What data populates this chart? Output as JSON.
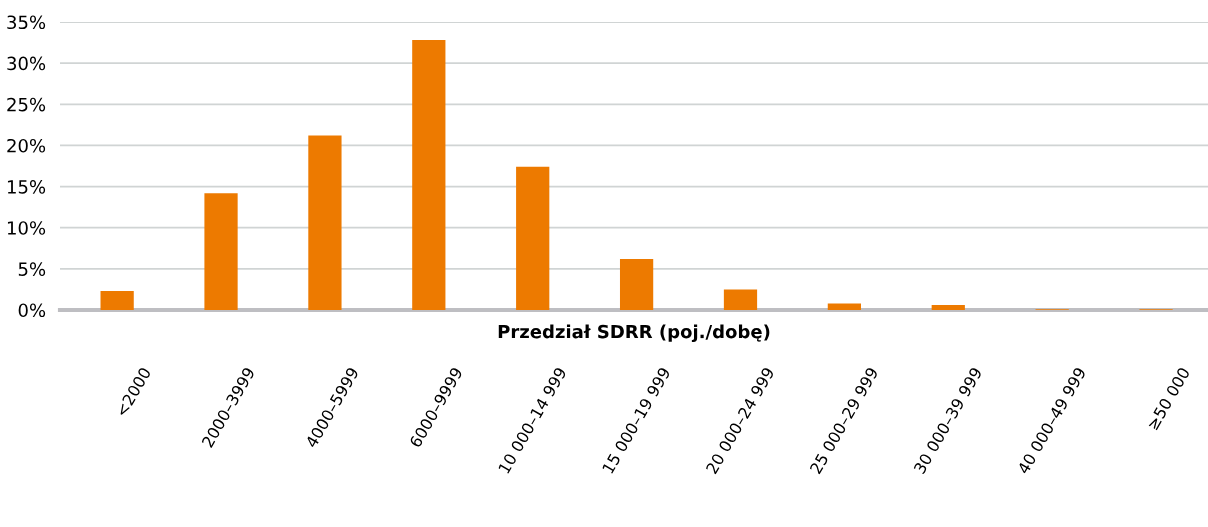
{
  "chart_data": {
    "type": "bar",
    "xlabel": "Przedział SDRR (poj./dobę)",
    "categories": [
      "<2000",
      "2000–3999",
      "4000–5999",
      "6000–9999",
      "10 000–14 999",
      "15 000–19 999",
      "20 000–24 999",
      "25 000–29 999",
      "30 000–39 999",
      "40 000–49 999",
      "≥50 000"
    ],
    "values": [
      2.3,
      14.2,
      21.2,
      32.8,
      17.4,
      6.2,
      2.5,
      0.8,
      0.6,
      0.1,
      0.1
    ],
    "color": "#ed7a00",
    "ylim": [
      0,
      35
    ],
    "yticks": [
      {
        "value": 0,
        "label": "0%"
      },
      {
        "value": 5,
        "label": "5%"
      },
      {
        "value": 10,
        "label": "10%"
      },
      {
        "value": 15,
        "label": "15%"
      },
      {
        "value": 20,
        "label": "20%"
      },
      {
        "value": 25,
        "label": "25%"
      },
      {
        "value": 30,
        "label": "30%"
      },
      {
        "value": 35,
        "label": "35%"
      }
    ],
    "grid": "y",
    "legend": false
  }
}
